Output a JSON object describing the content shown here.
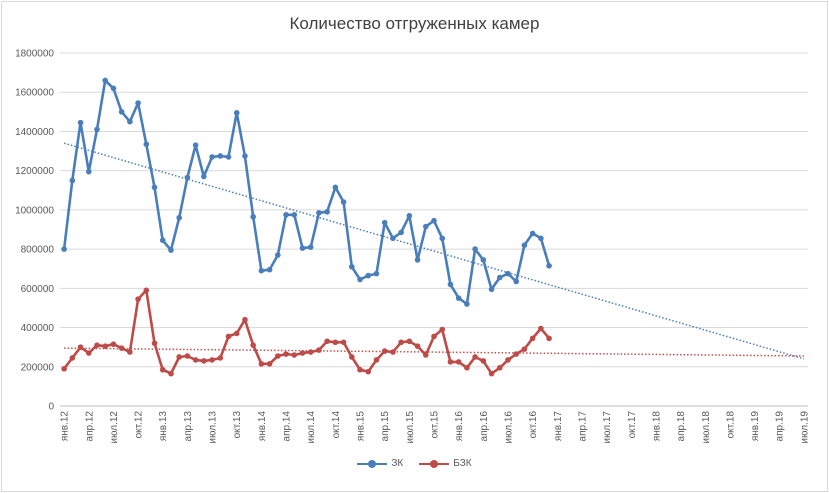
{
  "chart_data": {
    "type": "line",
    "title": "Количество отгруженных камер",
    "xlabel": "",
    "ylabel": "",
    "ylim": [
      0,
      1800000
    ],
    "y_ticks": [
      0,
      200000,
      400000,
      600000,
      800000,
      1000000,
      1200000,
      1400000,
      1600000,
      1800000
    ],
    "y_tick_labels": [
      "0",
      "200000",
      "400000",
      "600000",
      "800000",
      "1000000",
      "1200000",
      "1400000",
      "1600000",
      "1800000"
    ],
    "x_months_total": 91,
    "x_tick_labels": [
      "янв.12",
      "апр.12",
      "июл.12",
      "окт.12",
      "янв.13",
      "апр.13",
      "июл.13",
      "окт.13",
      "янв.14",
      "апр.14",
      "июл.14",
      "окт.14",
      "янв.15",
      "апр.15",
      "июл.15",
      "окт.15",
      "янв.16",
      "апр.16",
      "июл.16",
      "окт.16",
      "янв.17",
      "апр.17",
      "июл.17",
      "окт.17",
      "янв.18",
      "апр.18",
      "июл.18",
      "окт.18",
      "янв.19",
      "апр.19",
      "июл.19"
    ],
    "grid": true,
    "legend_position": "bottom",
    "series": [
      {
        "name": "ЗК",
        "color": "#4a7ebb",
        "values": [
          800000,
          1150000,
          1445000,
          1195000,
          1410000,
          1660000,
          1620000,
          1500000,
          1450000,
          1545000,
          1335000,
          1115000,
          845000,
          795000,
          960000,
          1165000,
          1330000,
          1170000,
          1270000,
          1275000,
          1270000,
          1495000,
          1275000,
          965000,
          690000,
          695000,
          770000,
          975000,
          975000,
          805000,
          810000,
          985000,
          990000,
          1115000,
          1040000,
          710000,
          645000,
          665000,
          675000,
          935000,
          855000,
          885000,
          970000,
          745000,
          915000,
          945000,
          855000,
          620000,
          550000,
          520000,
          800000,
          745000,
          595000,
          655000,
          675000,
          635000,
          820000,
          880000,
          855000,
          715000
        ]
      },
      {
        "name": "БЗК",
        "color": "#be4b48",
        "values": [
          190000,
          245000,
          300000,
          270000,
          310000,
          305000,
          315000,
          295000,
          275000,
          545000,
          590000,
          320000,
          185000,
          165000,
          250000,
          255000,
          235000,
          230000,
          235000,
          245000,
          355000,
          370000,
          440000,
          310000,
          215000,
          215000,
          255000,
          265000,
          260000,
          270000,
          275000,
          285000,
          330000,
          325000,
          325000,
          250000,
          185000,
          175000,
          235000,
          280000,
          275000,
          325000,
          330000,
          305000,
          260000,
          355000,
          390000,
          225000,
          225000,
          195000,
          250000,
          230000,
          165000,
          195000,
          235000,
          265000,
          290000,
          345000,
          395000,
          345000
        ]
      }
    ],
    "trendlines": [
      {
        "series": "ЗК",
        "type": "linear",
        "style": "dotted",
        "color": "#4a7ebb",
        "x_start_month": 0,
        "x_end_month": 90,
        "y_start": 1340000,
        "y_end": 240000
      },
      {
        "series": "БЗК",
        "type": "linear",
        "style": "dotted",
        "color": "#c0504d",
        "x_start_month": 0,
        "x_end_month": 90,
        "y_start": 295000,
        "y_end": 255000
      }
    ]
  }
}
